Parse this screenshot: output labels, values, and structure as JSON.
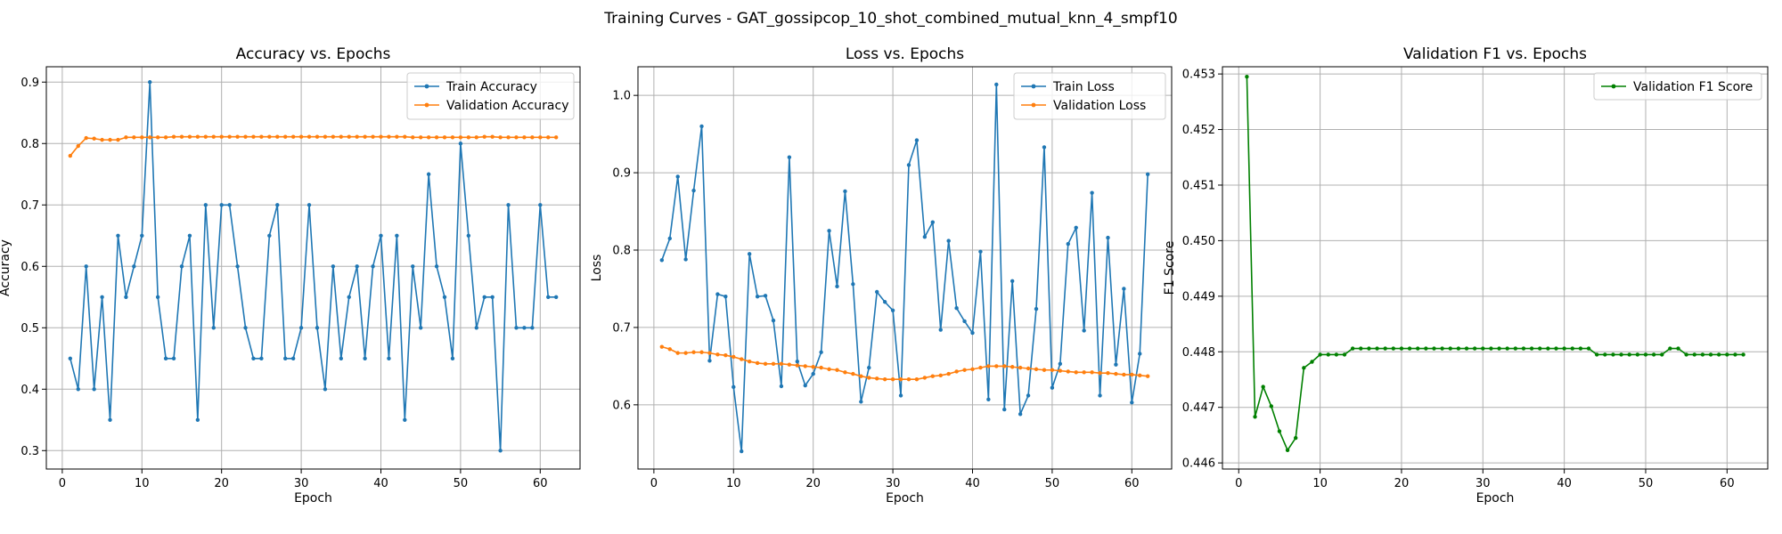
{
  "figure_title": "Training Curves - GAT_gossipcop_10_shot_combined_mutual_knn_4_smpf10",
  "chart_data": [
    {
      "type": "line",
      "title": "Accuracy vs. Epochs",
      "xlabel": "Epoch",
      "ylabel": "Accuracy",
      "xlim": [
        -2,
        65
      ],
      "ylim": [
        0.27,
        0.925
      ],
      "xticks": [
        0,
        10,
        20,
        30,
        40,
        50,
        60
      ],
      "yticks": [
        0.3,
        0.4,
        0.5,
        0.6,
        0.7,
        0.8,
        0.9
      ],
      "ytick_labels": [
        "0.3",
        "0.4",
        "0.5",
        "0.6",
        "0.7",
        "0.8",
        "0.9"
      ],
      "grid": true,
      "legend_position": "top-right",
      "x": [
        1,
        2,
        3,
        4,
        5,
        6,
        7,
        8,
        9,
        10,
        11,
        12,
        13,
        14,
        15,
        16,
        17,
        18,
        19,
        20,
        21,
        22,
        23,
        24,
        25,
        26,
        27,
        28,
        29,
        30,
        31,
        32,
        33,
        34,
        35,
        36,
        37,
        38,
        39,
        40,
        41,
        42,
        43,
        44,
        45,
        46,
        47,
        48,
        49,
        50,
        51,
        52,
        53,
        54,
        55,
        56,
        57,
        58,
        59,
        60,
        61,
        62
      ],
      "series": [
        {
          "name": "Train Accuracy",
          "color": "#1f77b4",
          "values": [
            0.45,
            0.4,
            0.6,
            0.4,
            0.55,
            0.35,
            0.65,
            0.55,
            0.6,
            0.65,
            0.9,
            0.55,
            0.45,
            0.45,
            0.6,
            0.65,
            0.35,
            0.7,
            0.5,
            0.7,
            0.7,
            0.6,
            0.5,
            0.45,
            0.45,
            0.65,
            0.7,
            0.45,
            0.45,
            0.5,
            0.7,
            0.5,
            0.4,
            0.6,
            0.45,
            0.55,
            0.6,
            0.45,
            0.6,
            0.65,
            0.45,
            0.65,
            0.35,
            0.6,
            0.5,
            0.75,
            0.6,
            0.55,
            0.45,
            0.8,
            0.65,
            0.5,
            0.55,
            0.55,
            0.3,
            0.7,
            0.5,
            0.5,
            0.5,
            0.7,
            0.55,
            0.55
          ]
        },
        {
          "name": "Validation Accuracy",
          "color": "#ff7f0e",
          "values": [
            0.78,
            0.796,
            0.809,
            0.808,
            0.806,
            0.806,
            0.806,
            0.81,
            0.81,
            0.81,
            0.81,
            0.81,
            0.81,
            0.811,
            0.811,
            0.811,
            0.811,
            0.811,
            0.811,
            0.811,
            0.811,
            0.811,
            0.811,
            0.811,
            0.811,
            0.811,
            0.811,
            0.811,
            0.811,
            0.811,
            0.811,
            0.811,
            0.811,
            0.811,
            0.811,
            0.811,
            0.811,
            0.811,
            0.811,
            0.811,
            0.811,
            0.811,
            0.811,
            0.81,
            0.81,
            0.81,
            0.81,
            0.81,
            0.81,
            0.81,
            0.81,
            0.81,
            0.811,
            0.811,
            0.81,
            0.81,
            0.81,
            0.81,
            0.81,
            0.81,
            0.81,
            0.81
          ]
        }
      ]
    },
    {
      "type": "line",
      "title": "Loss vs. Epochs",
      "xlabel": "Epoch",
      "ylabel": "Loss",
      "xlim": [
        -2,
        65
      ],
      "ylim": [
        0.517,
        1.037
      ],
      "xticks": [
        0,
        10,
        20,
        30,
        40,
        50,
        60
      ],
      "yticks": [
        0.6,
        0.7,
        0.8,
        0.9,
        1.0
      ],
      "ytick_labels": [
        "0.6",
        "0.7",
        "0.8",
        "0.9",
        "1.0"
      ],
      "grid": true,
      "legend_position": "top-right",
      "x": [
        1,
        2,
        3,
        4,
        5,
        6,
        7,
        8,
        9,
        10,
        11,
        12,
        13,
        14,
        15,
        16,
        17,
        18,
        19,
        20,
        21,
        22,
        23,
        24,
        25,
        26,
        27,
        28,
        29,
        30,
        31,
        32,
        33,
        34,
        35,
        36,
        37,
        38,
        39,
        40,
        41,
        42,
        43,
        44,
        45,
        46,
        47,
        48,
        49,
        50,
        51,
        52,
        53,
        54,
        55,
        56,
        57,
        58,
        59,
        60,
        61,
        62
      ],
      "series": [
        {
          "name": "Train Loss",
          "color": "#1f77b4",
          "values": [
            0.787,
            0.815,
            0.895,
            0.788,
            0.877,
            0.96,
            0.657,
            0.743,
            0.74,
            0.623,
            0.54,
            0.795,
            0.74,
            0.741,
            0.709,
            0.624,
            0.92,
            0.656,
            0.625,
            0.64,
            0.668,
            0.825,
            0.753,
            0.876,
            0.756,
            0.604,
            0.648,
            0.746,
            0.733,
            0.722,
            0.612,
            0.91,
            0.942,
            0.817,
            0.836,
            0.697,
            0.812,
            0.725,
            0.708,
            0.693,
            0.798,
            0.607,
            1.014,
            0.594,
            0.76,
            0.588,
            0.612,
            0.724,
            0.933,
            0.622,
            0.653,
            0.808,
            0.829,
            0.696,
            0.874,
            0.612,
            0.816,
            0.652,
            0.75,
            0.603,
            0.666,
            0.898
          ]
        },
        {
          "name": "Validation Loss",
          "color": "#ff7f0e",
          "values": [
            0.675,
            0.672,
            0.667,
            0.667,
            0.668,
            0.668,
            0.667,
            0.665,
            0.664,
            0.662,
            0.659,
            0.656,
            0.654,
            0.653,
            0.653,
            0.653,
            0.652,
            0.651,
            0.65,
            0.649,
            0.648,
            0.646,
            0.645,
            0.642,
            0.64,
            0.637,
            0.635,
            0.634,
            0.633,
            0.633,
            0.633,
            0.633,
            0.633,
            0.635,
            0.637,
            0.638,
            0.64,
            0.643,
            0.645,
            0.646,
            0.648,
            0.65,
            0.65,
            0.65,
            0.649,
            0.648,
            0.647,
            0.646,
            0.645,
            0.645,
            0.644,
            0.643,
            0.642,
            0.642,
            0.642,
            0.641,
            0.641,
            0.64,
            0.639,
            0.639,
            0.638,
            0.637
          ]
        }
      ]
    },
    {
      "type": "line",
      "title": "Validation F1 vs. Epochs",
      "xlabel": "Epoch",
      "ylabel": "F1 Score",
      "xlim": [
        -2,
        65
      ],
      "ylim": [
        0.44589,
        0.45313
      ],
      "xticks": [
        0,
        10,
        20,
        30,
        40,
        50,
        60
      ],
      "yticks": [
        0.446,
        0.447,
        0.448,
        0.449,
        0.45,
        0.451,
        0.452,
        0.453
      ],
      "ytick_labels": [
        "0.446",
        "0.447",
        "0.448",
        "0.449",
        "0.450",
        "0.451",
        "0.452",
        "0.453"
      ],
      "grid": true,
      "legend_position": "top-right",
      "x": [
        1,
        2,
        3,
        4,
        5,
        6,
        7,
        8,
        9,
        10,
        11,
        12,
        13,
        14,
        15,
        16,
        17,
        18,
        19,
        20,
        21,
        22,
        23,
        24,
        25,
        26,
        27,
        28,
        29,
        30,
        31,
        32,
        33,
        34,
        35,
        36,
        37,
        38,
        39,
        40,
        41,
        42,
        43,
        44,
        45,
        46,
        47,
        48,
        49,
        50,
        51,
        52,
        53,
        54,
        55,
        56,
        57,
        58,
        59,
        60,
        61,
        62
      ],
      "series": [
        {
          "name": "Validation F1 Score",
          "color": "#008000",
          "values": [
            0.45295,
            0.44683,
            0.44737,
            0.44702,
            0.44657,
            0.44623,
            0.44645,
            0.44771,
            0.44782,
            0.44795,
            0.44795,
            0.44795,
            0.44795,
            0.44806,
            0.44806,
            0.44806,
            0.44806,
            0.44806,
            0.44806,
            0.44806,
            0.44806,
            0.44806,
            0.44806,
            0.44806,
            0.44806,
            0.44806,
            0.44806,
            0.44806,
            0.44806,
            0.44806,
            0.44806,
            0.44806,
            0.44806,
            0.44806,
            0.44806,
            0.44806,
            0.44806,
            0.44806,
            0.44806,
            0.44806,
            0.44806,
            0.44806,
            0.44806,
            0.44795,
            0.44795,
            0.44795,
            0.44795,
            0.44795,
            0.44795,
            0.44795,
            0.44795,
            0.44795,
            0.44806,
            0.44806,
            0.44795,
            0.44795,
            0.44795,
            0.44795,
            0.44795,
            0.44795,
            0.44795,
            0.44795
          ]
        }
      ]
    }
  ]
}
